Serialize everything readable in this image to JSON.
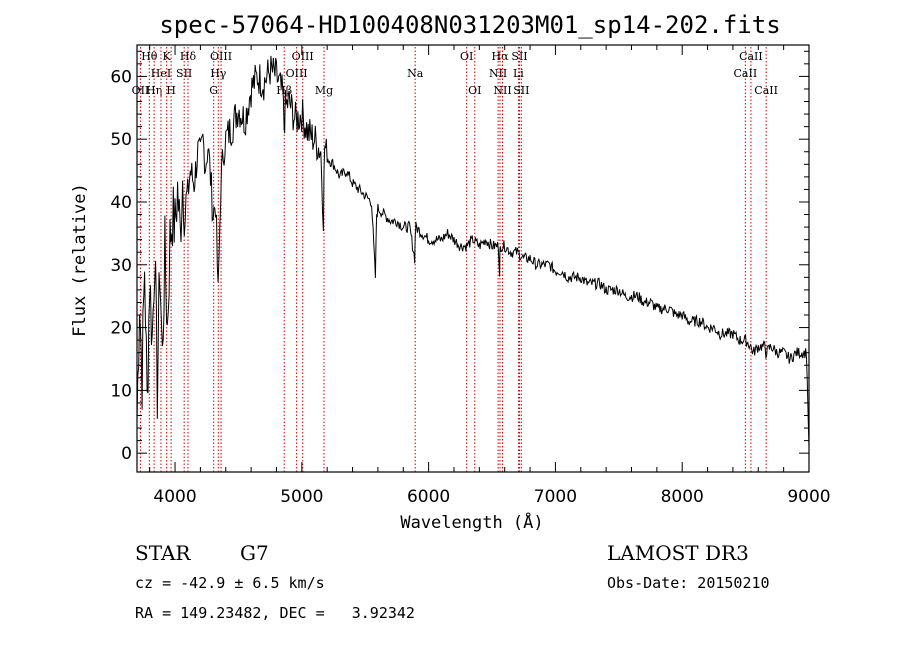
{
  "chart_data": {
    "type": "line",
    "title": "spec-57064-HD100408N031203M01_sp14-202.fits",
    "xlabel": "Wavelength (Å)",
    "ylabel": "Flux (relative)",
    "xlim": [
      3700,
      9000
    ],
    "ylim": [
      -3,
      65
    ],
    "xticks": [
      4000,
      5000,
      6000,
      7000,
      8000,
      9000
    ],
    "yticks": [
      0,
      10,
      20,
      30,
      40,
      50,
      60
    ],
    "series": [
      {
        "name": "flux",
        "x": [
          3700,
          3720,
          3740,
          3760,
          3780,
          3800,
          3820,
          3840,
          3860,
          3880,
          3900,
          3920,
          3940,
          3960,
          3980,
          4000,
          4020,
          4040,
          4060,
          4080,
          4100,
          4120,
          4150,
          4180,
          4200,
          4220,
          4240,
          4260,
          4280,
          4300,
          4320,
          4340,
          4360,
          4380,
          4400,
          4450,
          4500,
          4550,
          4600,
          4650,
          4700,
          4750,
          4800,
          4850,
          4860,
          4870,
          4900,
          4950,
          5000,
          5050,
          5100,
          5150,
          5170,
          5180,
          5200,
          5250,
          5300,
          5350,
          5400,
          5450,
          5500,
          5550,
          5580,
          5590,
          5600,
          5650,
          5700,
          5750,
          5800,
          5850,
          5890,
          5895,
          5900,
          5950,
          6000,
          6050,
          6100,
          6150,
          6200,
          6250,
          6300,
          6350,
          6400,
          6450,
          6500,
          6550,
          6560,
          6563,
          6570,
          6600,
          6650,
          6700,
          6750,
          6800,
          6850,
          6900,
          6950,
          7000,
          7050,
          7100,
          7150,
          7200,
          7250,
          7300,
          7350,
          7400,
          7450,
          7500,
          7550,
          7600,
          7650,
          7700,
          7750,
          7800,
          7850,
          7900,
          7950,
          8000,
          8050,
          8100,
          8150,
          8200,
          8250,
          8300,
          8350,
          8400,
          8450,
          8500,
          8540,
          8560,
          8600,
          8650,
          8660,
          8700,
          8750,
          8800,
          8850,
          8900,
          8950,
          8980,
          9000
        ],
        "y": [
          5,
          25,
          12,
          30,
          8,
          28,
          18,
          33,
          10,
          30,
          15,
          32,
          20,
          34,
          38,
          36,
          42,
          35,
          44,
          38,
          41,
          45,
          43,
          48,
          47,
          50,
          46,
          49,
          44,
          38,
          40,
          25,
          42,
          48,
          50,
          52,
          55,
          53,
          58,
          60,
          59,
          61,
          60,
          57,
          52,
          55,
          56,
          53,
          54,
          51,
          50,
          48,
          38,
          49,
          47,
          46,
          44,
          45,
          43,
          42,
          41,
          40,
          28,
          38,
          39,
          38,
          37,
          37,
          36,
          36,
          31,
          35,
          36,
          35,
          34,
          34,
          34,
          35,
          34,
          33,
          33,
          34,
          33,
          34,
          33,
          33,
          29,
          32,
          33,
          33,
          32,
          32,
          31,
          31,
          30,
          30,
          30,
          29,
          29,
          28,
          28,
          28,
          27,
          27,
          27,
          26,
          26,
          26,
          25,
          25,
          25,
          24,
          24,
          23,
          23,
          23,
          22,
          22,
          21,
          21,
          21,
          20,
          20,
          19,
          19,
          19,
          18,
          18,
          17,
          16,
          17,
          17,
          16,
          17,
          16,
          16,
          15,
          16,
          16,
          16,
          1
        ]
      }
    ],
    "line_markers": [
      {
        "label": "Hθ",
        "wl": 3797,
        "row": 1
      },
      {
        "label": "K",
        "wl": 3934,
        "row": 1
      },
      {
        "label": "Hδ",
        "wl": 4102,
        "row": 1
      },
      {
        "label": "OII",
        "wl": 3727,
        "row": 3
      },
      {
        "label": "Hη",
        "wl": 3835,
        "row": 3
      },
      {
        "label": "HeI",
        "wl": 3889,
        "row": 2
      },
      {
        "label": "H",
        "wl": 3969,
        "row": 3
      },
      {
        "label": "SII",
        "wl": 4072,
        "row": 2
      },
      {
        "label": "OIII",
        "wl": 4363,
        "row": 1
      },
      {
        "label": "Hγ",
        "wl": 4341,
        "row": 2
      },
      {
        "label": "G",
        "wl": 4305,
        "row": 3
      },
      {
        "label": "OIII",
        "wl": 5007,
        "row": 1
      },
      {
        "label": "OIII",
        "wl": 4959,
        "row": 2
      },
      {
        "label": "Hβ",
        "wl": 4861,
        "row": 3
      },
      {
        "label": "Mg",
        "wl": 5175,
        "row": 3
      },
      {
        "label": "Na",
        "wl": 5894,
        "row": 2
      },
      {
        "label": "OI",
        "wl": 6300,
        "row": 1
      },
      {
        "label": "OI",
        "wl": 6364,
        "row": 3
      },
      {
        "label": "Hα",
        "wl": 6563,
        "row": 1
      },
      {
        "label": "SII",
        "wl": 6717,
        "row": 1
      },
      {
        "label": "NII",
        "wl": 6548,
        "row": 2
      },
      {
        "label": "Li",
        "wl": 6708,
        "row": 2
      },
      {
        "label": "NII",
        "wl": 6583,
        "row": 3
      },
      {
        "label": "SII",
        "wl": 6731,
        "row": 3
      },
      {
        "label": "CaII",
        "wl": 8542,
        "row": 1
      },
      {
        "label": "CaII",
        "wl": 8498,
        "row": 2
      },
      {
        "label": "CaII",
        "wl": 8662,
        "row": 3
      }
    ]
  },
  "info": {
    "object_class": "STAR",
    "subclass": "G7",
    "survey": "LAMOST DR3",
    "cz": "cz = -42.9 ± 6.5 km/s",
    "obs_date": "Obs-Date: 20150210",
    "coords": "RA = 149.23482, DEC =   3.92342"
  }
}
